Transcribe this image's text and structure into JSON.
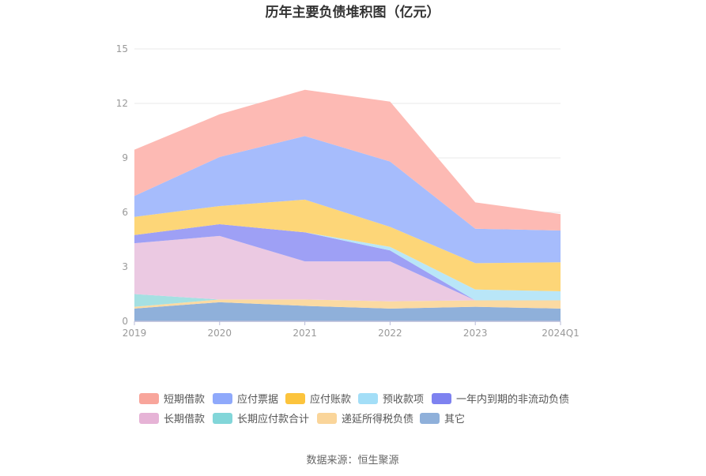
{
  "chart_data": {
    "type": "area",
    "stacked": true,
    "title": "历年主要负债堆积图（亿元）",
    "categories": [
      "2019",
      "2020",
      "2021",
      "2022",
      "2023",
      "2024Q1"
    ],
    "ylim": [
      0,
      15
    ],
    "yticks": [
      "0",
      "3",
      "6",
      "9",
      "12",
      "15"
    ],
    "grid": true,
    "legend_position": "bottom",
    "series": [
      {
        "name": "其它",
        "color": "#8fb0da",
        "values": [
          0.7,
          1.05,
          0.85,
          0.7,
          0.8,
          0.7
        ]
      },
      {
        "name": "递延所得税负债",
        "color": "#fbdaa2",
        "values": [
          0.1,
          0.15,
          0.35,
          0.4,
          0.35,
          0.45
        ]
      },
      {
        "name": "长期应付款合计",
        "color": "#a5e0e2",
        "values": [
          0.7,
          0.0,
          0.0,
          0.0,
          0.0,
          0.0
        ]
      },
      {
        "name": "长期借款",
        "color": "#ebc9e2",
        "values": [
          2.8,
          3.5,
          2.1,
          2.2,
          0.0,
          0.0
        ]
      },
      {
        "name": "一年内到期的非流动负债",
        "color": "#9ea0f5",
        "values": [
          0.45,
          0.65,
          1.6,
          0.6,
          0.0,
          0.0
        ]
      },
      {
        "name": "预收款项",
        "color": "#b9e6f8",
        "values": [
          0.0,
          0.0,
          0.0,
          0.2,
          0.6,
          0.5
        ]
      },
      {
        "name": "应付账款",
        "color": "#fdd678",
        "values": [
          1.0,
          1.0,
          1.8,
          1.1,
          1.45,
          1.6
        ]
      },
      {
        "name": "应付票据",
        "color": "#a6bcfc",
        "values": [
          1.15,
          2.7,
          3.5,
          3.6,
          1.9,
          1.75
        ]
      },
      {
        "name": "短期借款",
        "color": "#fdbab4",
        "values": [
          2.55,
          2.35,
          2.55,
          3.3,
          1.45,
          0.9
        ]
      }
    ]
  },
  "legend": {
    "row1": [
      {
        "label": "短期借款",
        "color": "#f8a59b"
      },
      {
        "label": "应付票据",
        "color": "#8fa9fb"
      },
      {
        "label": "应付账款",
        "color": "#fcc43d"
      },
      {
        "label": "预收款项",
        "color": "#a3def7"
      },
      {
        "label": "一年内到期的非流动负债",
        "color": "#7e82f0"
      }
    ],
    "row2": [
      {
        "label": "长期借款",
        "color": "#e6b3d6"
      },
      {
        "label": "长期应付款合计",
        "color": "#82d6d9"
      },
      {
        "label": "递延所得税负债",
        "color": "#fad59a"
      },
      {
        "label": "其它",
        "color": "#8fb0da"
      }
    ]
  },
  "source_text": "数据来源：恒生聚源"
}
